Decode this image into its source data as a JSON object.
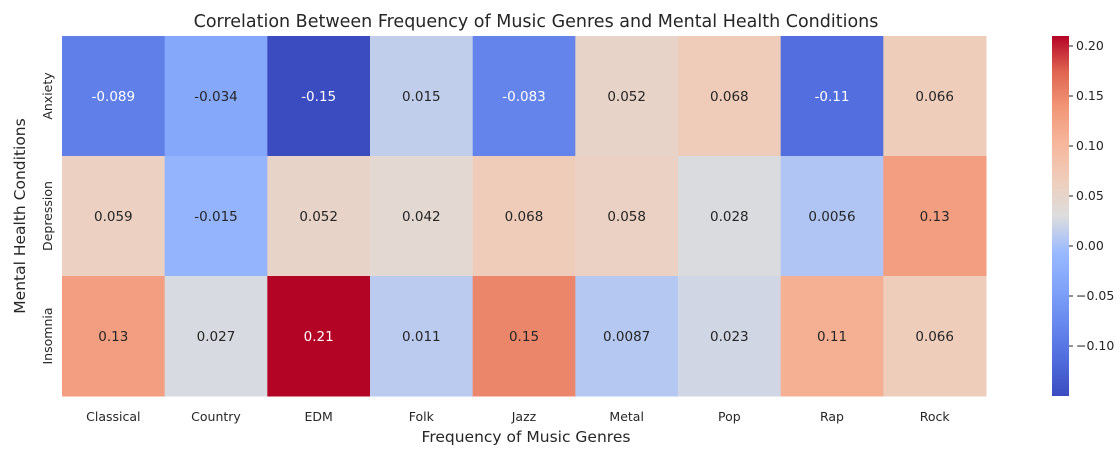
{
  "chart_data": {
    "type": "heatmap",
    "title": "Correlation Between Frequency of Music Genres and Mental Health Conditions",
    "xlabel": "Frequency of Music Genres",
    "ylabel": "Mental Health Conditions",
    "x_categories": [
      "Classical",
      "Country",
      "EDM",
      "Folk",
      "Jazz",
      "Metal",
      "Pop",
      "Rap",
      "Rock"
    ],
    "y_categories": [
      "Anxiety",
      "Depression",
      "Insomnia"
    ],
    "values": [
      [
        -0.089,
        -0.034,
        -0.15,
        0.015,
        -0.083,
        0.052,
        0.068,
        -0.11,
        0.066
      ],
      [
        0.059,
        -0.015,
        0.052,
        0.042,
        0.068,
        0.058,
        0.028,
        0.0056,
        0.13
      ],
      [
        0.13,
        0.027,
        0.21,
        0.011,
        0.15,
        0.0087,
        0.023,
        0.11,
        0.066
      ]
    ],
    "cell_labels": [
      [
        "-0.089",
        "-0.034",
        "-0.15",
        "0.015",
        "-0.083",
        "0.052",
        "0.068",
        "-0.11",
        "0.066"
      ],
      [
        "0.059",
        "-0.015",
        "0.052",
        "0.042",
        "0.068",
        "0.058",
        "0.028",
        "0.0056",
        "0.13"
      ],
      [
        "0.13",
        "0.027",
        "0.21",
        "0.011",
        "0.15",
        "0.0087",
        "0.023",
        "0.11",
        "0.066"
      ]
    ],
    "colormap": "coolwarm",
    "colorbar": {
      "vmin": -0.15,
      "vmax": 0.21,
      "ticks": [
        0.2,
        0.15,
        0.1,
        0.05,
        0.0,
        -0.05,
        -0.1
      ],
      "tick_labels": [
        "0.20",
        "0.15",
        "0.10",
        "0.05",
        "0.00",
        "−0.05",
        "−0.10"
      ]
    }
  }
}
